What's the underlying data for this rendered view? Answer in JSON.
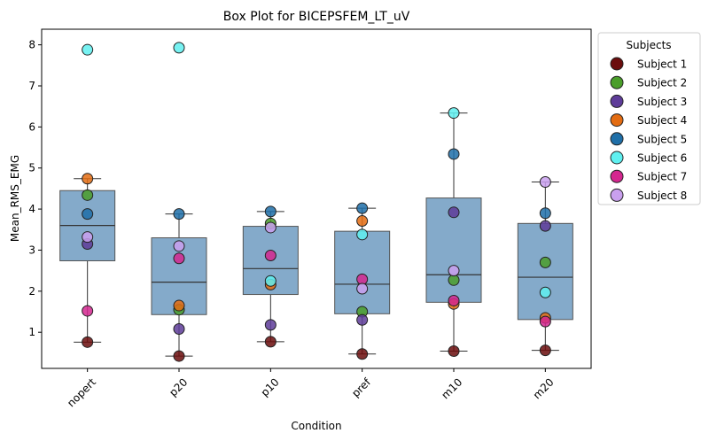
{
  "chart_data": {
    "type": "box",
    "title": "Box Plot for BICEPSFEM_LT_uV",
    "xlabel": "Condition",
    "ylabel": "Mean_RMS_EMG",
    "categories": [
      "nopert",
      "p20",
      "p10",
      "pref",
      "m10",
      "m20"
    ],
    "yticks": [
      1,
      2,
      3,
      4,
      5,
      6,
      7,
      8
    ],
    "ylim": [
      0.12,
      8.38
    ],
    "grid": false,
    "legend_title": "Subjects",
    "legend_position": "outside-right",
    "box_color": "#5b8db8",
    "boxes": [
      {
        "category": "nopert",
        "whisker_low": 0.76,
        "q1": 2.74,
        "median": 3.6,
        "q3": 4.45,
        "whisker_high": 4.74
      },
      {
        "category": "p20",
        "whisker_low": 0.42,
        "q1": 1.43,
        "median": 2.22,
        "q3": 3.3,
        "whisker_high": 3.88
      },
      {
        "category": "p10",
        "whisker_low": 0.77,
        "q1": 1.92,
        "median": 2.55,
        "q3": 3.58,
        "whisker_high": 3.94
      },
      {
        "category": "pref",
        "whisker_low": 0.47,
        "q1": 1.45,
        "median": 2.17,
        "q3": 3.46,
        "whisker_high": 4.02
      },
      {
        "category": "m10",
        "whisker_low": 0.54,
        "q1": 1.73,
        "median": 2.4,
        "q3": 4.27,
        "whisker_high": 6.34
      },
      {
        "category": "m20",
        "whisker_low": 0.56,
        "q1": 1.31,
        "median": 2.34,
        "q3": 3.65,
        "whisker_high": 4.66
      }
    ],
    "outliers": [
      {
        "category": "nopert",
        "value": 7.88
      },
      {
        "category": "p20",
        "value": 7.93
      }
    ],
    "series": [
      {
        "name": "Subject 1",
        "color": "#6b0d0d",
        "values": [
          0.76,
          0.42,
          0.77,
          0.47,
          0.54,
          0.56
        ]
      },
      {
        "name": "Subject 2",
        "color": "#4a9e2a",
        "values": [
          4.34,
          1.55,
          3.65,
          1.5,
          2.27,
          2.7
        ]
      },
      {
        "name": "Subject 3",
        "color": "#5e3c99",
        "values": [
          3.15,
          1.08,
          1.18,
          1.3,
          3.92,
          3.59
        ]
      },
      {
        "name": "Subject 4",
        "color": "#e36c12",
        "values": [
          4.74,
          1.65,
          2.16,
          3.71,
          1.69,
          1.35
        ]
      },
      {
        "name": "Subject 5",
        "color": "#1f6fa8",
        "values": [
          3.88,
          3.88,
          3.94,
          4.02,
          5.34,
          3.9
        ]
      },
      {
        "name": "Subject 6",
        "color": "#5ff0f0",
        "values": [
          7.88,
          7.93,
          2.25,
          3.38,
          6.34,
          1.97
        ]
      },
      {
        "name": "Subject 7",
        "color": "#d4278f",
        "values": [
          1.52,
          2.8,
          2.87,
          2.29,
          1.77,
          1.26
        ]
      },
      {
        "name": "Subject 8",
        "color": "#c9a0ee",
        "values": [
          3.32,
          3.1,
          3.55,
          2.06,
          2.5,
          4.66
        ]
      }
    ]
  }
}
